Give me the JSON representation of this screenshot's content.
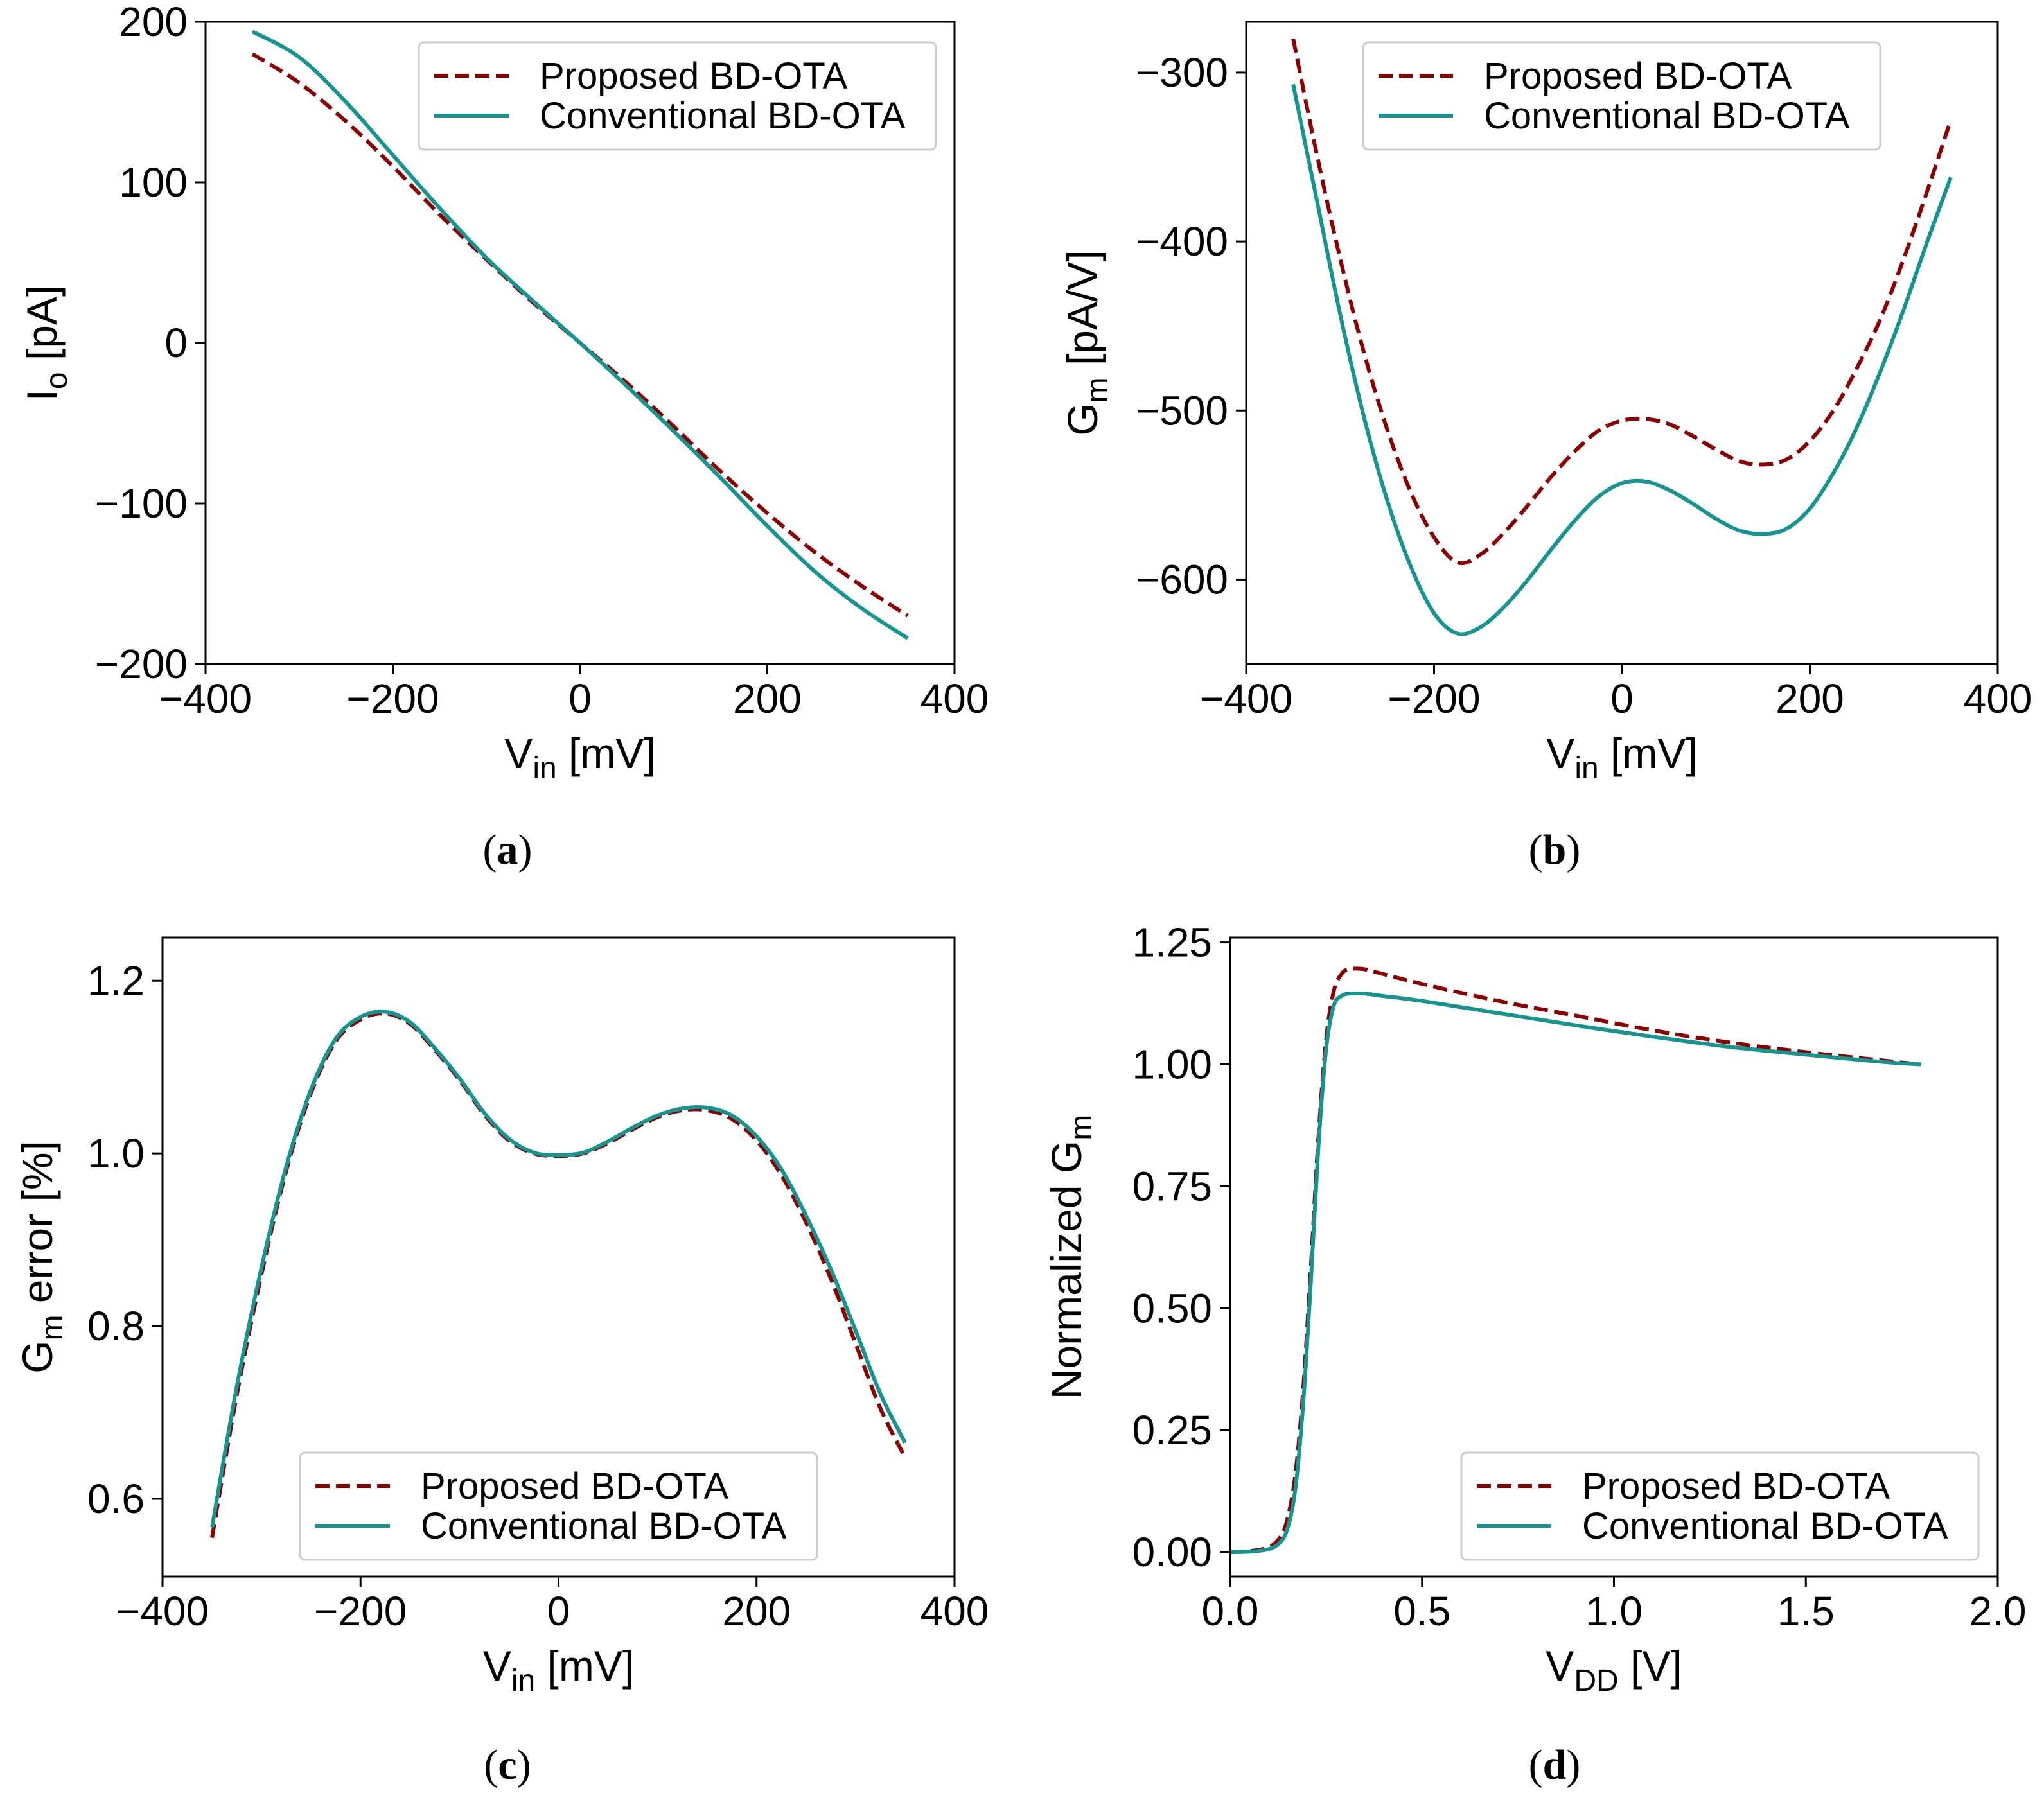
{
  "figure": {
    "legend": {
      "proposed": "Proposed BD-OTA",
      "conventional": "Conventional BD-OTA"
    },
    "colors": {
      "proposed": "#8b0000",
      "conventional": "#16948f"
    }
  },
  "chart_data": [
    {
      "id": "a",
      "type": "line",
      "caption": "(a)",
      "xlabel": "V_in [mV]",
      "ylabel": "I_o [pA]",
      "xlim": [
        -400,
        400
      ],
      "ylim": [
        -200,
        200
      ],
      "xticks": [
        -400,
        -200,
        0,
        200,
        400
      ],
      "xticklabels": [
        "−400",
        "−200",
        "0",
        "200",
        "400"
      ],
      "yticks": [
        -200,
        -100,
        0,
        100,
        200
      ],
      "yticklabels": [
        "−200",
        "−100",
        "0",
        "100",
        "200"
      ],
      "legend_loc": "upper right",
      "series": [
        {
          "name": "Proposed BD-OTA",
          "style": "dashed",
          "x": [
            -350,
            -300,
            -250,
            -200,
            -150,
            -100,
            -50,
            0,
            50,
            100,
            150,
            200,
            250,
            300,
            350
          ],
          "y": [
            180,
            162,
            138,
            110,
            80,
            52,
            25,
            0,
            -25,
            -52,
            -80,
            -106,
            -130,
            -151,
            -170
          ]
        },
        {
          "name": "Conventional BD-OTA",
          "style": "solid",
          "x": [
            -350,
            -300,
            -250,
            -200,
            -150,
            -100,
            -50,
            0,
            50,
            100,
            150,
            200,
            250,
            300,
            350
          ],
          "y": [
            194,
            178,
            150,
            117,
            84,
            53,
            26,
            0,
            -27,
            -55,
            -84,
            -114,
            -142,
            -165,
            -184
          ]
        }
      ]
    },
    {
      "id": "b",
      "type": "line",
      "caption": "(b)",
      "xlabel": "V_in [mV]",
      "ylabel": "G_m [pA/V]",
      "xlim": [
        -400,
        400
      ],
      "ylim": [
        -650,
        -270
      ],
      "xticks": [
        -400,
        -200,
        0,
        200,
        400
      ],
      "xticklabels": [
        "−400",
        "−200",
        "0",
        "200",
        "400"
      ],
      "yticks": [
        -600,
        -500,
        -400,
        -300
      ],
      "yticklabels": [
        "−600",
        "−500",
        "−400",
        "−300"
      ],
      "legend_loc": "upper center",
      "series": [
        {
          "name": "Proposed BD-OTA",
          "style": "dashed",
          "x": [
            -350,
            -325,
            -300,
            -275,
            -250,
            -225,
            -200,
            -175,
            -150,
            -125,
            -100,
            -75,
            -50,
            -25,
            0,
            25,
            50,
            75,
            100,
            125,
            150,
            175,
            200,
            225,
            250,
            275,
            300,
            325,
            350
          ],
          "y": [
            -280,
            -348,
            -410,
            -465,
            -511,
            -548,
            -575,
            -590,
            -585,
            -572,
            -556,
            -539,
            -524,
            -512,
            -506,
            -505,
            -508,
            -515,
            -523,
            -530,
            -532,
            -529,
            -518,
            -500,
            -475,
            -446,
            -410,
            -370,
            -328
          ]
        },
        {
          "name": "Conventional BD-OTA",
          "style": "solid",
          "x": [
            -350,
            -325,
            -300,
            -275,
            -250,
            -225,
            -200,
            -175,
            -150,
            -125,
            -100,
            -75,
            -50,
            -25,
            0,
            25,
            50,
            75,
            100,
            125,
            150,
            175,
            200,
            225,
            250,
            275,
            300,
            325,
            350
          ],
          "y": [
            -307,
            -375,
            -443,
            -503,
            -553,
            -592,
            -620,
            -632,
            -628,
            -616,
            -600,
            -582,
            -565,
            -551,
            -543,
            -542,
            -547,
            -555,
            -564,
            -571,
            -573,
            -570,
            -558,
            -537,
            -510,
            -477,
            -440,
            -400,
            -362
          ]
        }
      ]
    },
    {
      "id": "c",
      "type": "line",
      "caption": "(c)",
      "xlabel": "V_in [mV]",
      "ylabel": "G_m error [%]",
      "xlim": [
        -400,
        400
      ],
      "ylim": [
        0.51,
        1.25
      ],
      "xticks": [
        -400,
        -200,
        0,
        200,
        400
      ],
      "xticklabels": [
        "−400",
        "−200",
        "0",
        "200",
        "400"
      ],
      "yticks": [
        0.6,
        0.8,
        1.0,
        1.2
      ],
      "yticklabels": [
        "0.6",
        "0.8",
        "1.0",
        "1.2"
      ],
      "legend_loc": "lower center",
      "series": [
        {
          "name": "Proposed BD-OTA",
          "style": "dashed",
          "x": [
            -350,
            -325,
            -300,
            -275,
            -250,
            -225,
            -200,
            -175,
            -150,
            -125,
            -100,
            -75,
            -50,
            -25,
            0,
            25,
            50,
            75,
            100,
            125,
            150,
            175,
            200,
            225,
            250,
            275,
            300,
            325,
            350
          ],
          "y": [
            0.555,
            0.72,
            0.86,
            0.98,
            1.07,
            1.13,
            1.155,
            1.162,
            1.15,
            1.12,
            1.085,
            1.045,
            1.015,
            1.0,
            0.997,
            1.0,
            1.012,
            1.028,
            1.042,
            1.05,
            1.05,
            1.04,
            1.015,
            0.975,
            0.92,
            0.855,
            0.78,
            0.705,
            0.648
          ]
        },
        {
          "name": "Conventional BD-OTA",
          "style": "solid",
          "x": [
            -350,
            -325,
            -300,
            -275,
            -250,
            -225,
            -200,
            -175,
            -150,
            -125,
            -100,
            -75,
            -50,
            -25,
            0,
            25,
            50,
            75,
            100,
            125,
            150,
            175,
            200,
            225,
            250,
            275,
            300,
            325,
            350
          ],
          "y": [
            0.567,
            0.73,
            0.868,
            0.985,
            1.074,
            1.133,
            1.158,
            1.164,
            1.152,
            1.122,
            1.087,
            1.047,
            1.017,
            1.001,
            0.998,
            1.001,
            1.014,
            1.03,
            1.044,
            1.052,
            1.053,
            1.044,
            1.02,
            0.982,
            0.928,
            0.866,
            0.795,
            0.722,
            0.665
          ]
        }
      ]
    },
    {
      "id": "d",
      "type": "line",
      "caption": "(d)",
      "xlabel": "V_DD [V]",
      "ylabel": "Normalized G_m",
      "xlim": [
        0.0,
        2.0
      ],
      "ylim": [
        -0.05,
        1.26
      ],
      "xticks": [
        0.0,
        0.5,
        1.0,
        1.5,
        2.0
      ],
      "xticklabels": [
        "0.0",
        "0.5",
        "1.0",
        "1.5",
        "2.0"
      ],
      "yticks": [
        0.0,
        0.25,
        0.5,
        0.75,
        1.0,
        1.25
      ],
      "yticklabels": [
        "0.00",
        "0.25",
        "0.50",
        "0.75",
        "1.00",
        "1.25"
      ],
      "legend_loc": "lower right",
      "series": [
        {
          "name": "Proposed BD-OTA",
          "style": "dashed",
          "x": [
            0.0,
            0.05,
            0.1,
            0.13,
            0.15,
            0.17,
            0.19,
            0.21,
            0.23,
            0.25,
            0.27,
            0.29,
            0.31,
            0.35,
            0.4,
            0.5,
            0.7,
            0.9,
            1.1,
            1.3,
            1.5,
            1.7,
            1.8
          ],
          "y": [
            0.0,
            0.002,
            0.01,
            0.03,
            0.07,
            0.16,
            0.33,
            0.58,
            0.85,
            1.05,
            1.15,
            1.185,
            1.195,
            1.195,
            1.185,
            1.165,
            1.13,
            1.1,
            1.07,
            1.045,
            1.025,
            1.008,
            1.0
          ]
        },
        {
          "name": "Conventional BD-OTA",
          "style": "solid",
          "x": [
            0.0,
            0.05,
            0.1,
            0.13,
            0.15,
            0.17,
            0.19,
            0.21,
            0.23,
            0.25,
            0.27,
            0.29,
            0.31,
            0.35,
            0.4,
            0.5,
            0.7,
            0.9,
            1.1,
            1.3,
            1.5,
            1.7,
            1.8
          ],
          "y": [
            0.0,
            0.001,
            0.006,
            0.02,
            0.05,
            0.13,
            0.3,
            0.55,
            0.83,
            1.03,
            1.12,
            1.14,
            1.145,
            1.145,
            1.14,
            1.13,
            1.105,
            1.08,
            1.057,
            1.036,
            1.02,
            1.005,
            1.0
          ]
        }
      ]
    }
  ]
}
